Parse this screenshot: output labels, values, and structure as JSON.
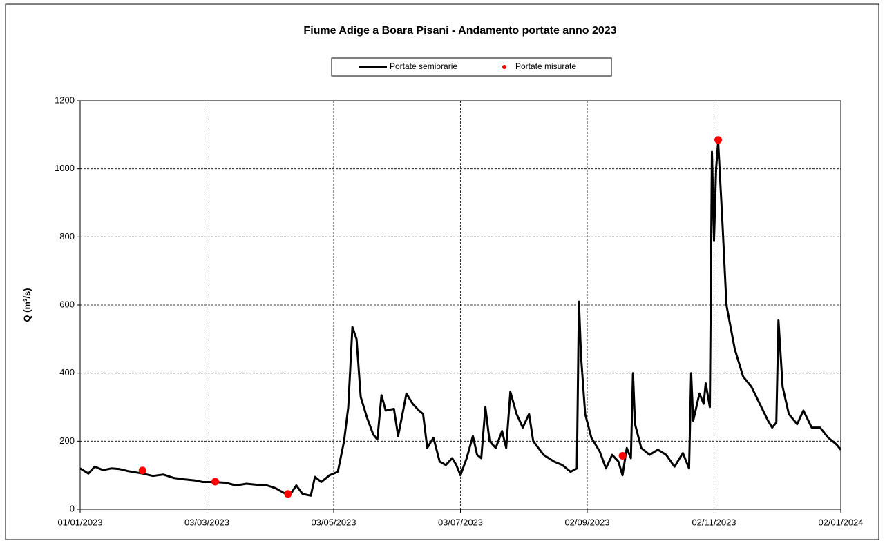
{
  "chart_data": {
    "type": "line",
    "title": "Fiume Adige a Boara Pisani - Andamento portate anno 2023",
    "ylabel": "Q (m³/s)",
    "xlim": [
      "01/01/2023",
      "02/01/2024"
    ],
    "xticks": [
      "01/01/2023",
      "03/03/2023",
      "03/05/2023",
      "03/07/2023",
      "02/09/2023",
      "02/11/2023",
      "02/01/2024"
    ],
    "ylim": [
      0,
      1200
    ],
    "yticks": [
      0,
      200,
      400,
      600,
      800,
      1000,
      1200
    ],
    "grid": true,
    "legend": "top",
    "series": [
      {
        "name": "Portate semiorarie",
        "color": "#000000",
        "style": "line",
        "x": [
          "01/01/2023",
          "05/01/2023",
          "08/01/2023",
          "12/01/2023",
          "16/01/2023",
          "20/01/2023",
          "24/01/2023",
          "28/01/2023",
          "31/01/2023",
          "05/02/2023",
          "10/02/2023",
          "15/02/2023",
          "20/02/2023",
          "25/02/2023",
          "01/03/2023",
          "06/03/2023",
          "12/03/2023",
          "17/03/2023",
          "22/03/2023",
          "27/03/2023",
          "01/04/2023",
          "05/04/2023",
          "09/04/2023",
          "12/04/2023",
          "15/04/2023",
          "18/04/2023",
          "22/04/2023",
          "24/04/2023",
          "27/04/2023",
          "01/05/2023",
          "05/05/2023",
          "08/05/2023",
          "10/05/2023",
          "12/05/2023",
          "14/05/2023",
          "16/05/2023",
          "19/05/2023",
          "22/05/2023",
          "24/05/2023",
          "26/05/2023",
          "28/05/2023",
          "01/06/2023",
          "03/06/2023",
          "07/06/2023",
          "10/06/2023",
          "13/06/2023",
          "15/06/2023",
          "17/06/2023",
          "20/06/2023",
          "23/06/2023",
          "26/06/2023",
          "29/06/2023",
          "01/07/2023",
          "03/07/2023",
          "06/07/2023",
          "09/07/2023",
          "11/07/2023",
          "13/07/2023",
          "15/07/2023",
          "17/07/2023",
          "20/07/2023",
          "23/07/2023",
          "25/07/2023",
          "27/07/2023",
          "30/07/2023",
          "02/08/2023",
          "05/08/2023",
          "07/08/2023",
          "12/08/2023",
          "17/08/2023",
          "21/08/2023",
          "25/08/2023",
          "28/08/2023",
          "29/08/2023",
          "30/08/2023",
          "01/09/2023",
          "04/09/2023",
          "08/09/2023",
          "11/09/2023",
          "14/09/2023",
          "17/09/2023",
          "19/09/2023",
          "21/09/2023",
          "23/09/2023",
          "24/09/2023",
          "25/09/2023",
          "28/09/2023",
          "02/10/2023",
          "06/10/2023",
          "10/10/2023",
          "14/10/2023",
          "18/10/2023",
          "21/10/2023",
          "22/10/2023",
          "23/10/2023",
          "26/10/2023",
          "28/10/2023",
          "29/10/2023",
          "31/10/2023",
          "01/11/2023",
          "02/11/2023",
          "03/11/2023",
          "04/11/2023",
          "06/11/2023",
          "08/11/2023",
          "12/11/2023",
          "16/11/2023",
          "20/11/2023",
          "24/11/2023",
          "28/11/2023",
          "30/11/2023",
          "02/12/2023",
          "03/12/2023",
          "05/12/2023",
          "08/12/2023",
          "12/12/2023",
          "15/12/2023",
          "19/12/2023",
          "23/12/2023",
          "27/12/2023",
          "31/12/2023",
          "02/01/2024"
        ],
        "values": [
          120,
          105,
          125,
          115,
          120,
          118,
          112,
          108,
          105,
          98,
          102,
          92,
          88,
          85,
          80,
          80,
          78,
          70,
          75,
          72,
          70,
          62,
          48,
          42,
          70,
          45,
          40,
          95,
          80,
          100,
          110,
          200,
          300,
          535,
          500,
          330,
          270,
          220,
          205,
          335,
          290,
          295,
          215,
          340,
          310,
          290,
          280,
          180,
          210,
          140,
          130,
          150,
          130,
          100,
          150,
          215,
          160,
          150,
          300,
          200,
          180,
          230,
          180,
          345,
          280,
          240,
          280,
          200,
          160,
          140,
          130,
          110,
          120,
          610,
          450,
          280,
          210,
          170,
          120,
          160,
          140,
          100,
          180,
          150,
          400,
          250,
          180,
          160,
          175,
          160,
          125,
          165,
          120,
          400,
          260,
          340,
          310,
          370,
          300,
          1050,
          790,
          1000,
          1080,
          850,
          600,
          470,
          390,
          360,
          310,
          260,
          240,
          255,
          555,
          360,
          280,
          250,
          290,
          240,
          240,
          210,
          190,
          175
        ]
      },
      {
        "name": "Portate misurate",
        "color": "#ff0000",
        "style": "markers",
        "x": [
          "31/01/2023",
          "07/03/2023",
          "11/04/2023",
          "19/09/2023",
          "04/11/2023"
        ],
        "values": [
          114,
          81,
          45,
          157,
          1085
        ]
      }
    ]
  }
}
